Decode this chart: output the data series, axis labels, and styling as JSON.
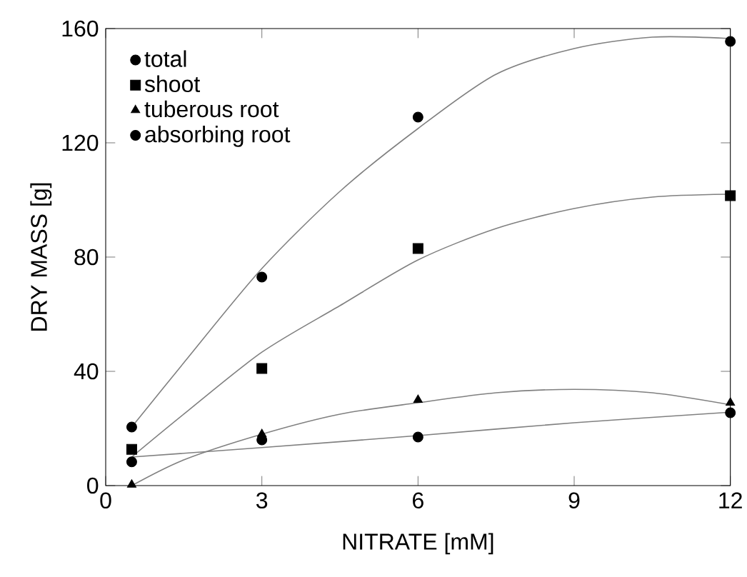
{
  "chart_data": {
    "type": "scatter",
    "xlabel": "NITRATE [mM]",
    "ylabel": "DRY MASS [g]",
    "xlim": [
      0,
      12
    ],
    "ylim": [
      0,
      160
    ],
    "xticks": [
      0,
      3,
      6,
      9,
      12
    ],
    "yticks": [
      0,
      40,
      80,
      120,
      160
    ],
    "legend": "top left",
    "grid": false,
    "series": [
      {
        "name": "total",
        "color": "#000000",
        "marker": "circle",
        "x": [
          0.5,
          3,
          6,
          12
        ],
        "values": [
          20.5,
          73,
          129,
          155.5
        ]
      },
      {
        "name": "shoot",
        "color": "#000000",
        "marker": "square",
        "x": [
          0.5,
          3,
          6,
          12
        ],
        "values": [
          12.7,
          41,
          83,
          101.5
        ]
      },
      {
        "name": "tuberous root",
        "color": "#000000",
        "marker": "triangle",
        "x": [
          0.5,
          3,
          6,
          12
        ],
        "values": [
          0.3,
          18,
          30,
          29
        ]
      },
      {
        "name": "absorbing root",
        "color": "#000000",
        "marker": "circle",
        "x": [
          0.5,
          3,
          6,
          12
        ],
        "values": [
          8.3,
          16,
          17,
          25.5
        ]
      },
      {
        "type": "line",
        "color": "#808080",
        "marker": "none",
        "x": [
          0.5,
          1.5,
          3,
          4.5,
          6,
          7.5,
          9,
          10.5,
          12
        ],
        "values": [
          20.5,
          43,
          76,
          103,
          125,
          144,
          153,
          157,
          156.5
        ]
      },
      {
        "type": "line",
        "color": "#808080",
        "marker": "none",
        "x": [
          0.5,
          1.5,
          3,
          4.5,
          6,
          7.5,
          9,
          10.5,
          12
        ],
        "values": [
          10,
          25,
          46.7,
          63,
          79,
          90,
          97,
          101,
          102
        ]
      },
      {
        "type": "line",
        "color": "#808080",
        "marker": "none",
        "x": [
          0.5,
          1.5,
          3,
          4.5,
          6,
          7.5,
          9,
          10.5,
          12
        ],
        "values": [
          0,
          9,
          18,
          25,
          29,
          32.5,
          33.7,
          32.5,
          28.3
        ]
      },
      {
        "type": "line",
        "color": "#808080",
        "marker": "none",
        "x": [
          0.5,
          3,
          6,
          9,
          12
        ],
        "values": [
          10,
          13.3,
          17.5,
          22,
          25.7
        ]
      }
    ]
  }
}
